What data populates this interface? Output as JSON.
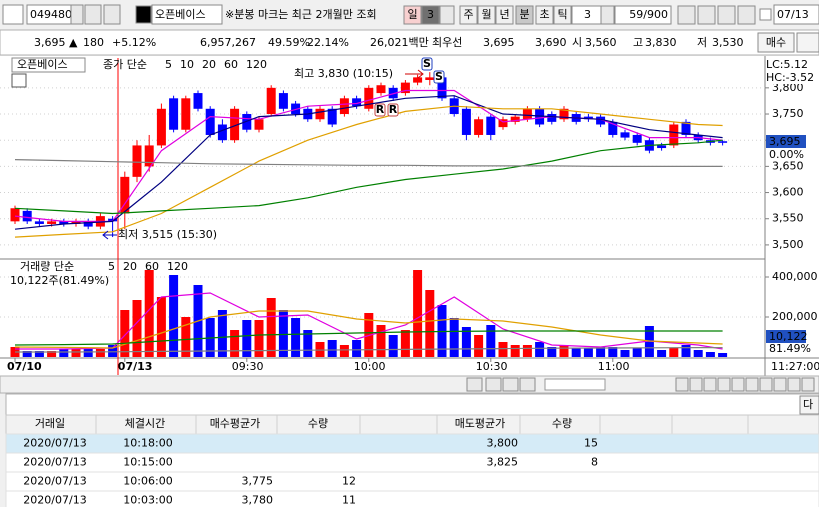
{
  "toolbar": {
    "code": "049480",
    "name": "오픈베이스",
    "badge": "신",
    "notice": "※분봉 마크는 최근 2개월만 조회",
    "periods": [
      "일",
      "3",
      "주",
      "월",
      "년",
      "분",
      "초",
      "틱"
    ],
    "interval": "3",
    "count": "59/900",
    "date": "07/13"
  },
  "quote": {
    "items": [
      "3,695 ▲",
      "180",
      "+5.12%",
      "6,957,267",
      "49.59%",
      "22.14%",
      "26,021백만",
      "최우선",
      "3,695",
      "3,690",
      "시",
      "3,560",
      "고",
      "3,830",
      "저",
      "3,530"
    ],
    "button": "매수"
  },
  "chart_data": {
    "type": "candlestick",
    "title": "오픈베이스",
    "ma_label": "종가 단순",
    "categories": [
      "07/10",
      null,
      null,
      null,
      null,
      null,
      null,
      null,
      null,
      "07/13",
      null,
      null,
      null,
      null,
      null,
      null,
      null,
      null,
      null,
      "09:30",
      null,
      null,
      null,
      null,
      null,
      null,
      null,
      null,
      null,
      "10:00",
      null,
      null,
      null,
      null,
      null,
      null,
      null,
      null,
      null,
      "10:30",
      null,
      null,
      null,
      null,
      null,
      null,
      null,
      null,
      null,
      "11:00",
      null,
      null,
      null,
      null,
      null,
      null,
      null,
      null,
      null
    ],
    "open": [
      3545,
      3565,
      3545,
      3540,
      3545,
      3540,
      3545,
      3535,
      3550,
      3560,
      3630,
      3650,
      3690,
      3780,
      3720,
      3790,
      3760,
      3730,
      3700,
      3750,
      3720,
      3750,
      3790,
      3770,
      3760,
      3740,
      3760,
      3750,
      3780,
      3760,
      3790,
      3800,
      3790,
      3810,
      3815,
      3820,
      3780,
      3760,
      3710,
      3745,
      3725,
      3735,
      3740,
      3760,
      3750,
      3740,
      3750,
      3745,
      3745,
      3735,
      3715,
      3710,
      3700,
      3690,
      3690,
      3735,
      3710,
      3700,
      3698
    ],
    "high": [
      3575,
      3570,
      3550,
      3550,
      3550,
      3550,
      3550,
      3560,
      3555,
      3640,
      3700,
      3710,
      3770,
      3785,
      3785,
      3795,
      3765,
      3740,
      3765,
      3755,
      3745,
      3805,
      3795,
      3775,
      3765,
      3765,
      3765,
      3785,
      3785,
      3805,
      3810,
      3805,
      3815,
      3825,
      3830,
      3825,
      3785,
      3765,
      3745,
      3750,
      3745,
      3750,
      3765,
      3765,
      3755,
      3765,
      3755,
      3750,
      3750,
      3740,
      3720,
      3715,
      3705,
      3695,
      3735,
      3740,
      3715,
      3705,
      3700
    ],
    "low": [
      3540,
      3540,
      3535,
      3535,
      3535,
      3535,
      3530,
      3530,
      3515,
      3530,
      3620,
      3640,
      3685,
      3715,
      3715,
      3755,
      3705,
      3695,
      3695,
      3715,
      3715,
      3745,
      3755,
      3745,
      3735,
      3735,
      3725,
      3745,
      3760,
      3755,
      3785,
      3775,
      3785,
      3805,
      3805,
      3775,
      3745,
      3700,
      3705,
      3700,
      3720,
      3730,
      3735,
      3725,
      3730,
      3735,
      3730,
      3735,
      3725,
      3705,
      3700,
      3690,
      3675,
      3680,
      3685,
      3705,
      3695,
      3690,
      3690
    ],
    "close": [
      3570,
      3545,
      3540,
      3545,
      3540,
      3545,
      3535,
      3555,
      3545,
      3630,
      3690,
      3690,
      3760,
      3720,
      3780,
      3760,
      3710,
      3700,
      3760,
      3720,
      3740,
      3800,
      3760,
      3750,
      3740,
      3760,
      3730,
      3780,
      3765,
      3800,
      3805,
      3780,
      3810,
      3820,
      3820,
      3780,
      3750,
      3710,
      3740,
      3710,
      3740,
      3745,
      3760,
      3730,
      3735,
      3760,
      3735,
      3740,
      3730,
      3710,
      3705,
      3695,
      3680,
      3685,
      3730,
      3710,
      3700,
      3695,
      3695
    ],
    "up_color": "#ff0000",
    "down_color": "#0000ff",
    "series": [
      {
        "name": "5",
        "color": "#e000e0",
        "x": [
          0,
          4,
          8,
          12,
          16,
          20,
          24,
          28,
          32,
          36,
          40,
          44,
          48,
          52,
          56,
          58
        ],
        "values": [
          3555,
          3545,
          3545,
          3680,
          3745,
          3740,
          3765,
          3770,
          3795,
          3795,
          3735,
          3745,
          3740,
          3705,
          3705,
          3700
        ]
      },
      {
        "name": "10",
        "color": "#000080",
        "x": [
          0,
          4,
          8,
          12,
          16,
          20,
          24,
          28,
          32,
          36,
          40,
          44,
          48,
          52,
          56,
          58
        ],
        "values": [
          3530,
          3540,
          3545,
          3620,
          3710,
          3745,
          3750,
          3765,
          3780,
          3785,
          3750,
          3745,
          3740,
          3720,
          3710,
          3705
        ]
      },
      {
        "name": "20",
        "color": "#e0a000",
        "x": [
          0,
          4,
          8,
          12,
          16,
          20,
          24,
          28,
          32,
          36,
          40,
          44,
          48,
          52,
          56,
          58
        ],
        "values": [
          3515,
          3520,
          3525,
          3560,
          3610,
          3660,
          3700,
          3730,
          3755,
          3765,
          3760,
          3760,
          3750,
          3740,
          3730,
          3728
        ]
      },
      {
        "name": "60",
        "color": "#008000",
        "x": [
          0,
          4,
          8,
          12,
          16,
          20,
          24,
          28,
          32,
          36,
          40,
          44,
          48,
          52,
          56,
          58
        ],
        "values": [
          3570,
          3565,
          3560,
          3565,
          3570,
          3575,
          3590,
          3610,
          3625,
          3635,
          3645,
          3660,
          3680,
          3690,
          3695,
          3700
        ]
      },
      {
        "name": "120",
        "color": "#808080",
        "x": [
          0,
          4,
          8,
          12,
          16,
          20,
          24,
          28,
          32,
          36,
          40,
          44,
          48,
          52,
          56,
          58
        ],
        "values": [
          3663,
          3661,
          3659,
          3657,
          3655,
          3654,
          3653,
          3652,
          3652,
          3651,
          3651,
          3651,
          3650,
          3650,
          3650,
          3650
        ]
      }
    ],
    "ylim": [
      3475,
      3857
    ],
    "yticks": [
      {
        "value": 3800,
        "label": "3,800"
      },
      {
        "value": 3750,
        "label": "3,750"
      },
      {
        "value": 3700,
        "label": "3,700"
      },
      {
        "value": 3650,
        "label": "3,650"
      },
      {
        "value": 3600,
        "label": "3,600"
      },
      {
        "value": 3550,
        "label": "3,550"
      },
      {
        "value": 3500,
        "label": "3,500"
      }
    ],
    "grid": true,
    "high_label": "최고 3,830 (10:15)",
    "low_label": "최저 3,515 (15:30)",
    "signals": [
      "S",
      "S",
      "R",
      "R"
    ],
    "lc": "LC:5.12",
    "hc": "HC:-3.52",
    "last": "3,695",
    "last_pct": "0.00%",
    "cursor_time": "11:27:00",
    "volume": {
      "title": "거래량 단순",
      "values": [
        50000,
        30000,
        30000,
        30000,
        40000,
        40000,
        40000,
        40000,
        60000,
        235000,
        285000,
        435000,
        300000,
        410000,
        200000,
        360000,
        195000,
        235000,
        135000,
        185000,
        185000,
        295000,
        235000,
        195000,
        135000,
        75000,
        85000,
        60000,
        85000,
        220000,
        160000,
        110000,
        135000,
        435000,
        335000,
        260000,
        195000,
        150000,
        110000,
        160000,
        75000,
        60000,
        60000,
        75000,
        50000,
        60000,
        45000,
        45000,
        50000,
        50000,
        35000,
        45000,
        155000,
        35000,
        45000,
        60000,
        35000,
        25000,
        20000
      ],
      "ylim": [
        0,
        475000
      ],
      "yticks": [
        {
          "value": 400000,
          "label": "400,000"
        },
        {
          "value": 200000,
          "label": "200,000"
        }
      ],
      "series": [
        {
          "name": "5",
          "color": "#e000e0",
          "x": [
            0,
            4,
            8,
            12,
            16,
            20,
            24,
            28,
            32,
            36,
            40,
            44,
            48,
            52,
            56,
            58
          ],
          "values": [
            40000,
            40000,
            45000,
            300000,
            320000,
            200000,
            210000,
            90000,
            160000,
            300000,
            140000,
            60000,
            50000,
            80000,
            60000,
            40000
          ]
        },
        {
          "name": "20",
          "color": "#e0a000",
          "x": [
            0,
            4,
            8,
            12,
            16,
            20,
            24,
            28,
            32,
            36,
            40,
            44,
            48,
            52,
            56,
            58
          ],
          "values": [
            50000,
            48000,
            45000,
            120000,
            200000,
            230000,
            230000,
            190000,
            170000,
            190000,
            180000,
            150000,
            110000,
            80000,
            70000,
            65000
          ]
        },
        {
          "name": "60",
          "color": "#008000",
          "x": [
            0,
            4,
            8,
            12,
            16,
            20,
            24,
            28,
            32,
            36,
            40,
            44,
            48,
            52,
            56,
            58
          ],
          "values": [
            60000,
            62000,
            65000,
            80000,
            95000,
            110000,
            115000,
            120000,
            125000,
            128000,
            130000,
            130000,
            130000,
            130000,
            130000,
            130000
          ]
        },
        {
          "name": "120",
          "color": "#808080",
          "x": [
            0,
            4,
            8,
            12,
            16,
            20,
            24,
            28,
            32,
            36,
            40,
            44,
            48,
            52,
            56,
            58
          ],
          "values": [
            25000,
            25000,
            26000,
            28000,
            30000,
            32000,
            34000,
            36000,
            38000,
            40000,
            42000,
            44000,
            45000,
            46000,
            47000,
            47000
          ]
        }
      ],
      "info": "10,122주(81.49%)",
      "last": "10,122",
      "last_pct": "81.49%"
    }
  },
  "next_button": "다",
  "table": {
    "headers": [
      "거래일",
      "체결시간",
      "매수평균가",
      "수량",
      "매도평균가",
      "수량"
    ],
    "rows": [
      [
        "2020/07/13",
        "10:18:00",
        null,
        null,
        "3,800",
        "15"
      ],
      [
        "2020/07/13",
        "10:15:00",
        null,
        null,
        "3,825",
        "8"
      ],
      [
        "2020/07/13",
        "10:06:00",
        "3,775",
        "12",
        null,
        null
      ],
      [
        "2020/07/13",
        "10:03:00",
        "3,780",
        "11",
        null,
        null
      ]
    ]
  }
}
